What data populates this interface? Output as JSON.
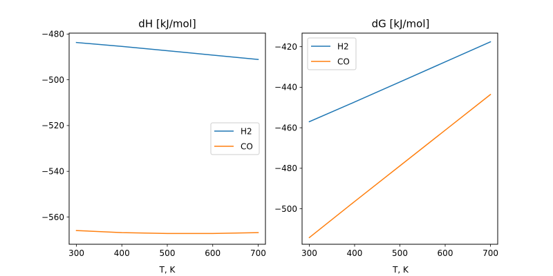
{
  "chart_data": [
    {
      "type": "line",
      "title": "dH [kJ/mol]",
      "xlabel": "T, K",
      "ylabel": "",
      "xlim": [
        284,
        716
      ],
      "ylim": [
        -571.9,
        -479.6
      ],
      "xticks": [
        300,
        400,
        500,
        600,
        700
      ],
      "yticks": [
        -480,
        -500,
        -520,
        -540,
        -560
      ],
      "tick_labels_x": [
        "300",
        "400",
        "500",
        "600",
        "700"
      ],
      "tick_labels_y": [
        "−480",
        "−500",
        "−520",
        "−540",
        "−560"
      ],
      "legend_position": "center-right",
      "series": [
        {
          "name": "H2",
          "color": "#1f77b4",
          "x": [
            300,
            400,
            500,
            600,
            700
          ],
          "y": [
            -483.7,
            -485.4,
            -487.3,
            -489.2,
            -491.1
          ]
        },
        {
          "name": "CO",
          "color": "#ff7f0e",
          "x": [
            300,
            400,
            500,
            600,
            700
          ],
          "y": [
            -565.9,
            -566.8,
            -567.2,
            -567.2,
            -566.8
          ]
        }
      ]
    },
    {
      "type": "line",
      "title": "dG [kJ/mol]",
      "xlabel": "T, K",
      "ylabel": "",
      "xlim": [
        284,
        716
      ],
      "ylim": [
        -517.5,
        -413.3
      ],
      "xticks": [
        300,
        400,
        500,
        600,
        700
      ],
      "yticks": [
        -420,
        -440,
        -460,
        -480,
        -500
      ],
      "tick_labels_x": [
        "300",
        "400",
        "500",
        "600",
        "700"
      ],
      "tick_labels_y": [
        "−420",
        "−440",
        "−460",
        "−480",
        "−500"
      ],
      "legend_position": "upper-left",
      "series": [
        {
          "name": "H2",
          "color": "#1f77b4",
          "x": [
            300,
            400,
            500,
            600,
            700
          ],
          "y": [
            -457.0,
            -447.3,
            -437.4,
            -427.5,
            -417.6
          ]
        },
        {
          "name": "CO",
          "color": "#ff7f0e",
          "x": [
            300,
            400,
            500,
            600,
            700
          ],
          "y": [
            -514.2,
            -496.4,
            -478.8,
            -461.2,
            -443.6
          ]
        }
      ]
    }
  ]
}
